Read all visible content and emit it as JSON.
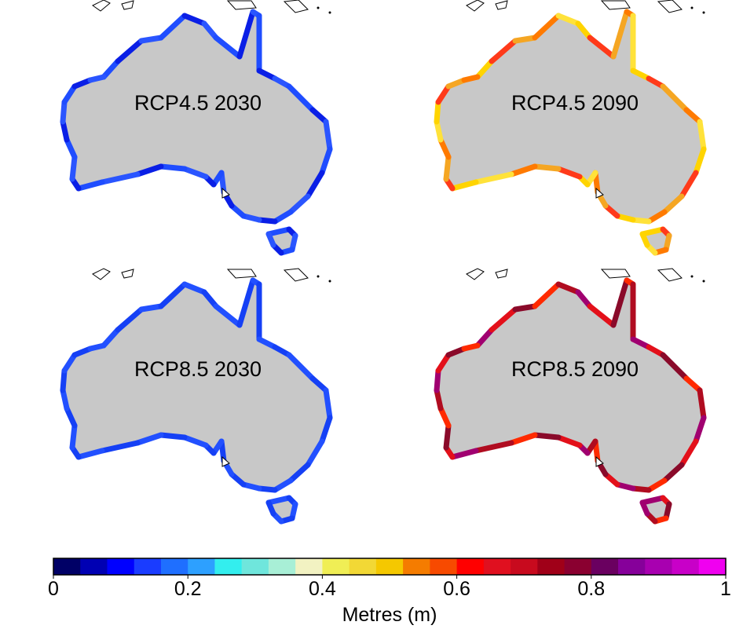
{
  "panels": [
    {
      "label": "RCP4.5 2030",
      "palette": "blue_a"
    },
    {
      "label": "RCP4.5 2090",
      "palette": "warm_a"
    },
    {
      "label": "RCP8.5 2030",
      "palette": "blue_b"
    },
    {
      "label": "RCP8.5 2090",
      "palette": "warm_b"
    }
  ],
  "legend": {
    "title": "Metres (m)",
    "range": [
      0,
      1
    ],
    "ticks": [
      "0",
      "0.2",
      "0.4",
      "0.6",
      "0.8",
      "1"
    ],
    "colors": [
      "#000066",
      "#0000b3",
      "#0000ff",
      "#1a3cff",
      "#1f6fff",
      "#2da0ff",
      "#33eeee",
      "#6fe6dc",
      "#a8efd6",
      "#f2f2c2",
      "#f0ee55",
      "#f2d835",
      "#f5c800",
      "#f57c00",
      "#f74a00",
      "#ff0000",
      "#e0101f",
      "#c80a1e",
      "#a00018",
      "#8a0030",
      "#6a0060",
      "#86009a",
      "#a800b0",
      "#c800c8",
      "#f000f0"
    ]
  },
  "coast_colors": {
    "blue_a": [
      "#1f4dff",
      "#0a1fe6",
      "#2a55ff"
    ],
    "blue_b": [
      "#2250ff",
      "#1540f5"
    ],
    "warm_a": [
      "#f5a623",
      "#ffd400",
      "#ff7a00",
      "#ff3a1a",
      "#ffe23a"
    ],
    "warm_b": [
      "#e3101a",
      "#b00c20",
      "#8a0a2a",
      "#a00070",
      "#ff2a00"
    ]
  },
  "land_color": "#c8c8c8"
}
